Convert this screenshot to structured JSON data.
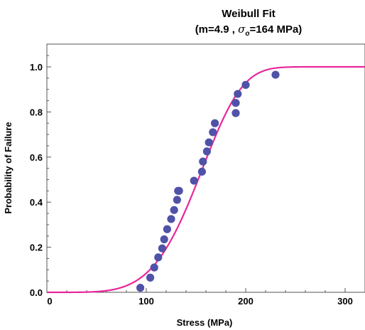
{
  "chart_data": {
    "type": "scatter",
    "title": "Weibull Fit",
    "subtitle": {
      "prefix": "(m=4.9 , ",
      "sigma": "σ",
      "sub": "o",
      "suffix": "=164 MPa)"
    },
    "xlabel": "Stress (MPa)",
    "ylabel": "Probability of Failure",
    "xlim": [
      0,
      320
    ],
    "ylim": [
      0,
      1.1
    ],
    "xticks": [
      0,
      100,
      200,
      300
    ],
    "yticks": [
      0.0,
      0.2,
      0.4,
      0.6,
      0.8,
      1.0
    ],
    "xtick_labels": [
      "0",
      "100",
      "200",
      "300"
    ],
    "ytick_labels": [
      "0.0",
      "0.2",
      "0.4",
      "0.6",
      "0.8",
      "1.0"
    ],
    "grid": false,
    "points": {
      "color": "#5052a8",
      "x": [
        94,
        104,
        108,
        112,
        116,
        118,
        121,
        125,
        128,
        131,
        132,
        133,
        148,
        156,
        157,
        161,
        163,
        167,
        169,
        190,
        190,
        192,
        200,
        230
      ],
      "y": [
        0.02,
        0.065,
        0.11,
        0.155,
        0.195,
        0.235,
        0.28,
        0.325,
        0.365,
        0.41,
        0.45,
        0.45,
        0.495,
        0.535,
        0.58,
        0.625,
        0.665,
        0.71,
        0.75,
        0.795,
        0.84,
        0.88,
        0.92,
        0.965
      ]
    },
    "fit_curve": {
      "model": "weibull_cdf",
      "m": 4.9,
      "sigma0": 164,
      "color": "#e8279a"
    }
  }
}
